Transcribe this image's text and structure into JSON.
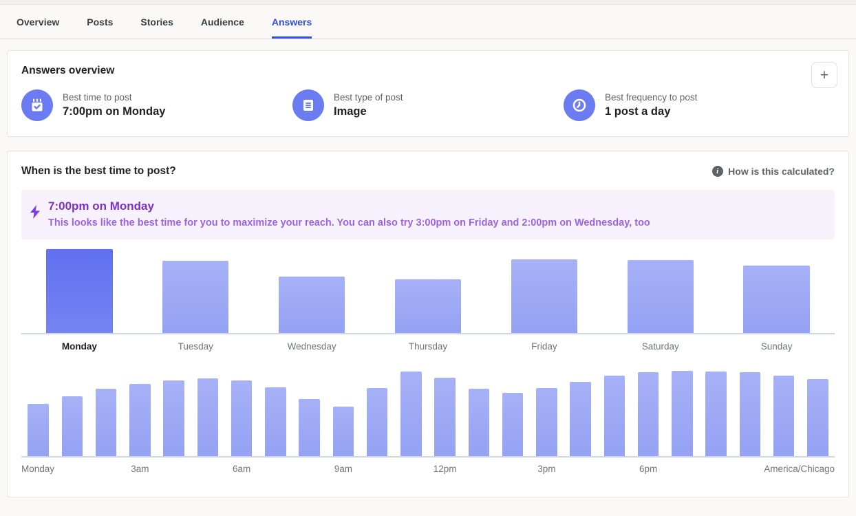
{
  "tabs": [
    {
      "label": "Overview",
      "active": false
    },
    {
      "label": "Posts",
      "active": false
    },
    {
      "label": "Stories",
      "active": false
    },
    {
      "label": "Audience",
      "active": false
    },
    {
      "label": "Answers",
      "active": true
    }
  ],
  "overview_card": {
    "title": "Answers overview",
    "add_button": "+",
    "stats": [
      {
        "icon": "calendar-check-icon",
        "label": "Best time to post",
        "value": "7:00pm on Monday"
      },
      {
        "icon": "document-icon",
        "label": "Best type of post",
        "value": "Image"
      },
      {
        "icon": "clock-icon",
        "label": "Best frequency to post",
        "value": "1 post a day"
      }
    ]
  },
  "best_time_card": {
    "title": "When is the best time to post?",
    "help_link": "How is this calculated?",
    "callout": {
      "title": "7:00pm on Monday",
      "description": "This looks like the best time for you to maximize your reach. You can also try 3:00pm on Friday and 2:00pm on Wednesday, too"
    }
  },
  "chart_data": [
    {
      "type": "bar",
      "title": "",
      "categories": [
        "Monday",
        "Tuesday",
        "Wednesday",
        "Thursday",
        "Friday",
        "Saturday",
        "Sunday"
      ],
      "values": [
        100,
        86,
        67,
        64,
        88,
        87,
        80
      ],
      "highlighted_index": 0,
      "value_scale": "estimated percent of max bar height",
      "ylim": [
        0,
        100
      ],
      "grid": false,
      "legend": "none"
    },
    {
      "type": "bar",
      "title": "",
      "categories": [
        "12am",
        "1am",
        "2am",
        "3am",
        "4am",
        "5am",
        "6am",
        "7am",
        "8am",
        "9am",
        "10am",
        "11am",
        "12pm",
        "1pm",
        "2pm",
        "3pm",
        "4pm",
        "5pm",
        "6pm",
        "7pm",
        "8pm",
        "9pm",
        "10pm",
        "11pm"
      ],
      "values": [
        61,
        70,
        79,
        85,
        89,
        91,
        89,
        81,
        67,
        58,
        80,
        99,
        92,
        79,
        74,
        80,
        87,
        94,
        98,
        100,
        99,
        98,
        94,
        90
      ],
      "ticks": [
        {
          "label": "Monday",
          "align": "left"
        },
        {
          "label": "3am",
          "col": 3
        },
        {
          "label": "6am",
          "col": 6
        },
        {
          "label": "9am",
          "col": 9
        },
        {
          "label": "12pm",
          "col": 12
        },
        {
          "label": "3pm",
          "col": 15
        },
        {
          "label": "6pm",
          "col": 18
        },
        {
          "label": "America/Chicago",
          "align": "right"
        }
      ],
      "value_scale": "estimated percent of max bar height",
      "ylim": [
        0,
        100
      ],
      "grid": false,
      "legend": "none"
    }
  ],
  "colors": {
    "accent_blue": "#2E4FE5",
    "highlight_bar_top": "#6170EF",
    "highlight_bar_bottom": "#7683F3",
    "bar_top": "#A7B1F7",
    "bar_bottom": "#95A1F3",
    "icon_badge_bg": "#6B7CF2",
    "callout_bg": "#F6F1FB",
    "callout_title": "#7A2FD0",
    "callout_text": "#9B64E4",
    "bolt": "#7C3AED",
    "baseline": "#CCD7EA"
  }
}
